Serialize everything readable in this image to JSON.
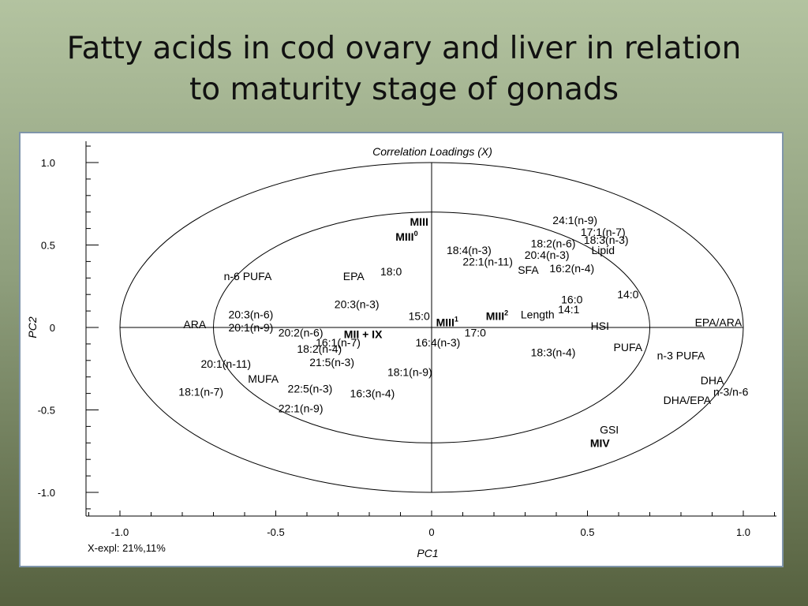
{
  "slide": {
    "title_line1": "Fatty acids in cod ovary and liver in relation",
    "title_line2": "to maturity stage of gonads"
  },
  "chart_data": {
    "type": "scatter",
    "title": "Correlation Loadings (X)",
    "xlabel": "PC1",
    "ylabel": "PC2",
    "explained": "X-expl: 21%,11%",
    "xlim": [
      -1.0,
      1.0
    ],
    "ylim": [
      -1.0,
      1.0
    ],
    "xticks": [
      {
        "v": -1.0,
        "t": "-1.0"
      },
      {
        "v": -0.5,
        "t": "-0.5"
      },
      {
        "v": 0,
        "t": "0"
      },
      {
        "v": 0.5,
        "t": "0.5"
      },
      {
        "v": 1.0,
        "t": "1.0"
      }
    ],
    "yticks": [
      {
        "v": 1.0,
        "t": "1.0"
      },
      {
        "v": 0.5,
        "t": "0.5"
      },
      {
        "v": 0,
        "t": "0"
      },
      {
        "v": -0.5,
        "t": "-0.5"
      },
      {
        "v": -1.0,
        "t": "-1.0"
      }
    ],
    "ellipses": [
      {
        "r": 1.0
      },
      {
        "r": 0.7
      }
    ],
    "points": [
      {
        "label": "24:1(n-9)",
        "x": 0.46,
        "y": 0.65
      },
      {
        "label": "17:1(n-7)",
        "x": 0.55,
        "y": 0.58
      },
      {
        "label": "18:3(n-3)",
        "x": 0.56,
        "y": 0.53
      },
      {
        "label": "18:2(n-6)",
        "x": 0.39,
        "y": 0.51
      },
      {
        "label": "Lipid",
        "x": 0.55,
        "y": 0.47
      },
      {
        "label": "18:4(n-3)",
        "x": 0.12,
        "y": 0.47
      },
      {
        "label": "20:4(n-3)",
        "x": 0.37,
        "y": 0.44
      },
      {
        "label": "22:1(n-11)",
        "x": 0.18,
        "y": 0.4
      },
      {
        "label": "16:2(n-4)",
        "x": 0.45,
        "y": 0.36
      },
      {
        "label": "SFA",
        "x": 0.31,
        "y": 0.35
      },
      {
        "label": "18:0",
        "x": -0.13,
        "y": 0.34
      },
      {
        "label": "EPA",
        "x": -0.25,
        "y": 0.31
      },
      {
        "label": "n-6 PUFA",
        "x": -0.59,
        "y": 0.31
      },
      {
        "label": "MIII",
        "x": -0.04,
        "y": 0.64,
        "bold": true
      },
      {
        "label": "MIII",
        "sup": "0",
        "x": -0.08,
        "y": 0.55,
        "bold": true
      },
      {
        "label": "14:0",
        "x": 0.63,
        "y": 0.2
      },
      {
        "label": "16:0",
        "x": 0.45,
        "y": 0.17
      },
      {
        "label": "14:1",
        "x": 0.44,
        "y": 0.11
      },
      {
        "label": "20:3(n-3)",
        "x": -0.24,
        "y": 0.14
      },
      {
        "label": "Length",
        "x": 0.34,
        "y": 0.08
      },
      {
        "label": "15:0",
        "x": -0.04,
        "y": 0.07
      },
      {
        "label": "MIII",
        "sup": "2",
        "x": 0.21,
        "y": 0.07,
        "bold": true
      },
      {
        "label": "20:3(n-6)",
        "x": -0.58,
        "y": 0.08
      },
      {
        "label": "MIII",
        "sup": "1",
        "x": 0.05,
        "y": 0.03,
        "bold": true
      },
      {
        "label": "HSI",
        "x": 0.54,
        "y": 0.01
      },
      {
        "label": "EPA/ARA",
        "x": 0.92,
        "y": 0.03
      },
      {
        "label": "ARA",
        "x": -0.76,
        "y": 0.02
      },
      {
        "label": "20:1(n-9)",
        "x": -0.58,
        "y": 0.0
      },
      {
        "label": "20:2(n-6)",
        "x": -0.42,
        "y": -0.03
      },
      {
        "label": "MII + IX",
        "x": -0.22,
        "y": -0.04,
        "bold": true
      },
      {
        "label": "17:0",
        "x": 0.14,
        "y": -0.03
      },
      {
        "label": "16:1(n-7)",
        "x": -0.3,
        "y": -0.09
      },
      {
        "label": "16:4(n-3)",
        "x": 0.02,
        "y": -0.09
      },
      {
        "label": "18:2(n-4)",
        "x": -0.36,
        "y": -0.13
      },
      {
        "label": "PUFA",
        "x": 0.63,
        "y": -0.12
      },
      {
        "label": "18:3(n-4)",
        "x": 0.39,
        "y": -0.15
      },
      {
        "label": "n-3 PUFA",
        "x": 0.8,
        "y": -0.17
      },
      {
        "label": "21:5(n-3)",
        "x": -0.32,
        "y": -0.21
      },
      {
        "label": "20:1(n-11)",
        "x": -0.66,
        "y": -0.22
      },
      {
        "label": "18:1(n-9)",
        "x": -0.07,
        "y": -0.27
      },
      {
        "label": "MUFA",
        "x": -0.54,
        "y": -0.31
      },
      {
        "label": "DHA",
        "x": 0.9,
        "y": -0.32
      },
      {
        "label": "22:5(n-3)",
        "x": -0.39,
        "y": -0.37
      },
      {
        "label": "n-3/n-6",
        "x": 0.96,
        "y": -0.39
      },
      {
        "label": "16:3(n-4)",
        "x": -0.19,
        "y": -0.4
      },
      {
        "label": "18:1(n-7)",
        "x": -0.74,
        "y": -0.39
      },
      {
        "label": "DHA/EPA",
        "x": 0.82,
        "y": -0.44
      },
      {
        "label": "22:1(n-9)",
        "x": -0.42,
        "y": -0.49
      },
      {
        "label": "GSI",
        "x": 0.57,
        "y": -0.62
      },
      {
        "label": "MIV",
        "x": 0.54,
        "y": -0.7,
        "bold": true
      }
    ]
  }
}
